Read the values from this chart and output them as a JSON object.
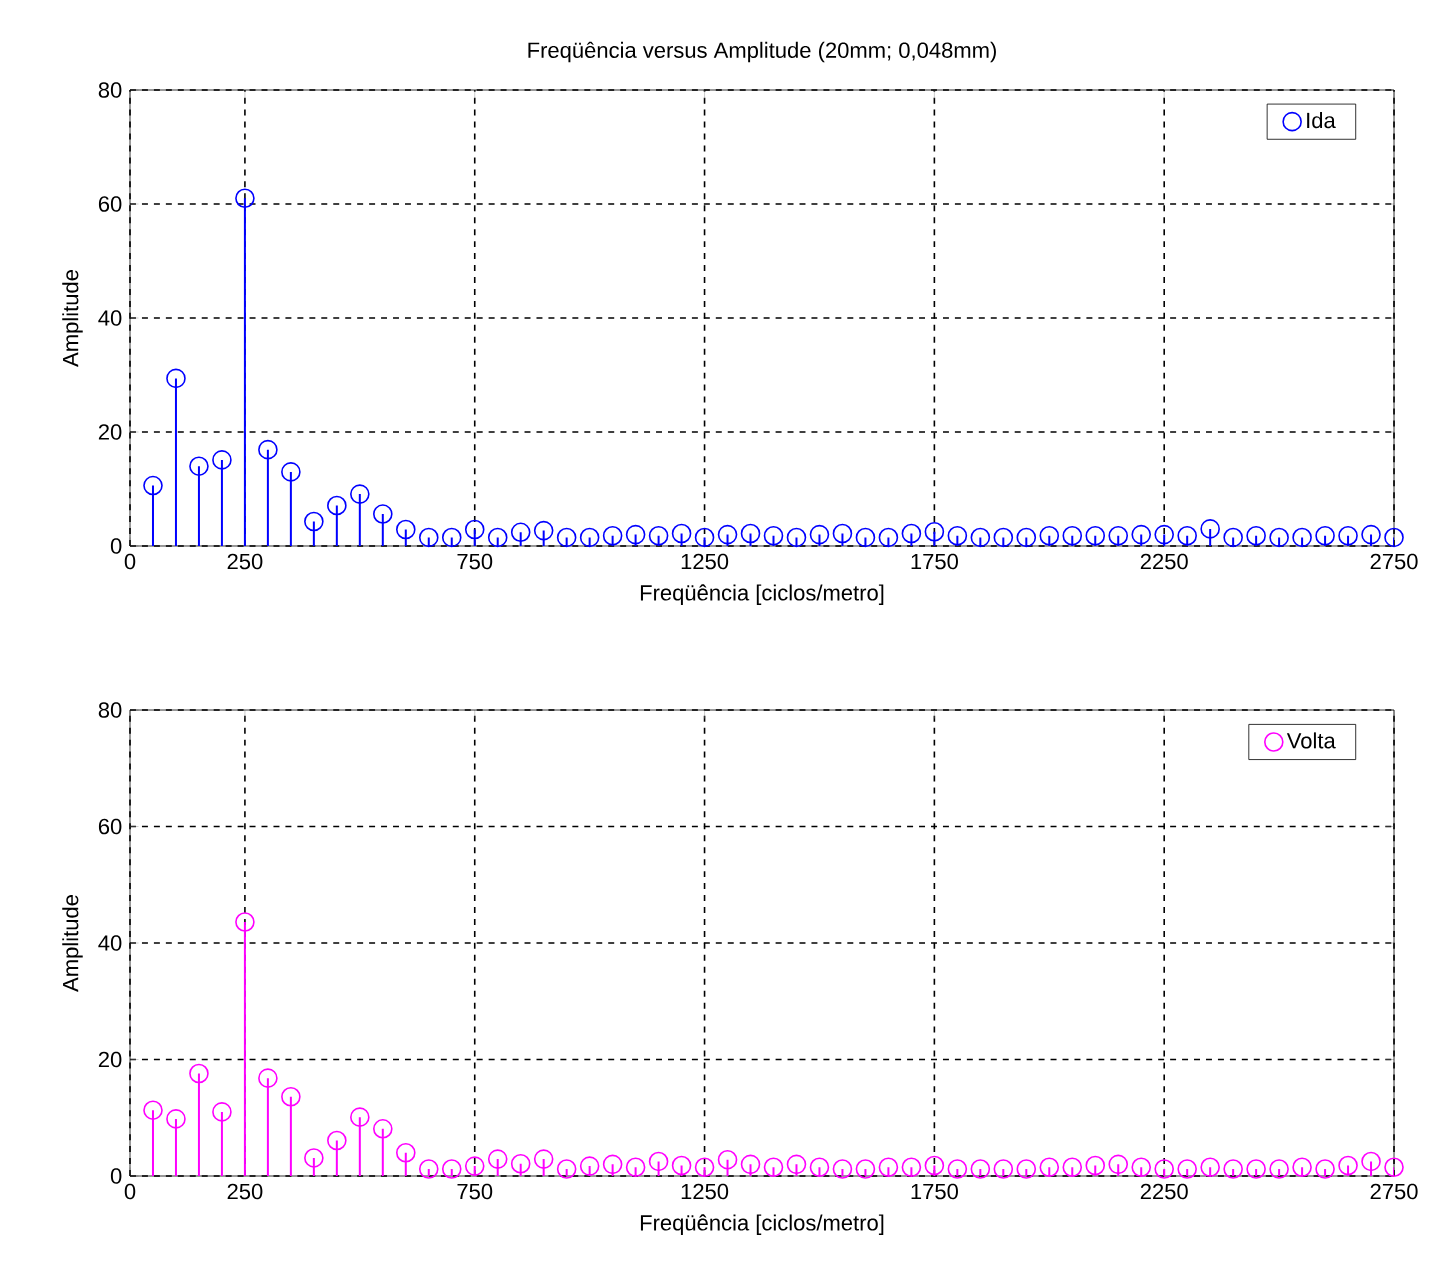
{
  "chart_data": [
    {
      "type": "lollipop",
      "title": "Freqüência versus Amplitude  (20mm; 0,048mm)",
      "xlabel": "Freqüência [ciclos/metro]",
      "ylabel": "Amplitude",
      "x": [
        50,
        100,
        150,
        200,
        250,
        300,
        350,
        400,
        450,
        500,
        550,
        600,
        650,
        700,
        750,
        800,
        850,
        900,
        950,
        1000,
        1050,
        1100,
        1150,
        1200,
        1250,
        1300,
        1350,
        1400,
        1450,
        1500,
        1550,
        1600,
        1650,
        1700,
        1750,
        1800,
        1850,
        1900,
        1950,
        2000,
        2050,
        2100,
        2150,
        2200,
        2250,
        2300,
        2350,
        2400,
        2450,
        2500,
        2550,
        2600,
        2650,
        2700,
        2750
      ],
      "series": [
        {
          "name": "Ida",
          "color": "#0000ff",
          "values": [
            10.6,
            29.4,
            14,
            15.1,
            61,
            16.9,
            13,
            4.3,
            7.1,
            9.1,
            5.6,
            2.9,
            1.5,
            1.5,
            2.9,
            1.5,
            2.4,
            2.7,
            1.5,
            1.5,
            1.8,
            2,
            1.8,
            2.2,
            1.5,
            2,
            2.2,
            1.8,
            1.5,
            2,
            2.2,
            1.5,
            1.5,
            2.2,
            2.5,
            1.8,
            1.5,
            1.5,
            1.5,
            1.8,
            1.8,
            1.8,
            1.8,
            2,
            2,
            1.8,
            3,
            1.5,
            1.8,
            1.5,
            1.5,
            1.8,
            1.8,
            2,
            1.5
          ]
        }
      ],
      "xlim": [
        0,
        2750
      ],
      "ylim": [
        0,
        80
      ],
      "xticks": [
        0,
        250,
        750,
        1250,
        1750,
        2250,
        2750
      ],
      "yticks": [
        0,
        20,
        40,
        60,
        80
      ],
      "grid": true,
      "legend": "top right",
      "marker": "circle"
    },
    {
      "type": "lollipop",
      "xlabel": "Freqüência [ciclos/metro]",
      "ylabel": "Amplitude",
      "x": [
        50,
        100,
        150,
        200,
        250,
        300,
        350,
        400,
        450,
        500,
        550,
        600,
        650,
        700,
        750,
        800,
        850,
        900,
        950,
        1000,
        1050,
        1100,
        1150,
        1200,
        1250,
        1300,
        1350,
        1400,
        1450,
        1500,
        1550,
        1600,
        1650,
        1700,
        1750,
        1800,
        1850,
        1900,
        1950,
        2000,
        2050,
        2100,
        2150,
        2200,
        2250,
        2300,
        2350,
        2400,
        2450,
        2500,
        2550,
        2600,
        2650,
        2700,
        2750
      ],
      "series": [
        {
          "name": "Volta",
          "color": "#ff00ff",
          "values": [
            11.3,
            9.8,
            17.6,
            11,
            43.6,
            16.8,
            13.6,
            3.1,
            6.1,
            10.1,
            8.1,
            4,
            1.2,
            1.2,
            1.7,
            2.9,
            2.1,
            2.9,
            1.2,
            1.7,
            2,
            1.5,
            2.5,
            1.8,
            1.5,
            2.8,
            2,
            1.5,
            2,
            1.5,
            1.2,
            1.2,
            1.5,
            1.5,
            1.8,
            1.2,
            1.2,
            1.2,
            1.2,
            1.5,
            1.5,
            1.8,
            2,
            1.5,
            1.2,
            1.2,
            1.5,
            1.2,
            1.2,
            1.2,
            1.5,
            1.2,
            1.8,
            2.5,
            1.5
          ]
        }
      ],
      "xlim": [
        0,
        2750
      ],
      "ylim": [
        0,
        80
      ],
      "xticks": [
        0,
        250,
        750,
        1250,
        1750,
        2250,
        2750
      ],
      "yticks": [
        0,
        20,
        40,
        60,
        80
      ],
      "grid": true,
      "legend": "top right",
      "marker": "circle"
    }
  ]
}
